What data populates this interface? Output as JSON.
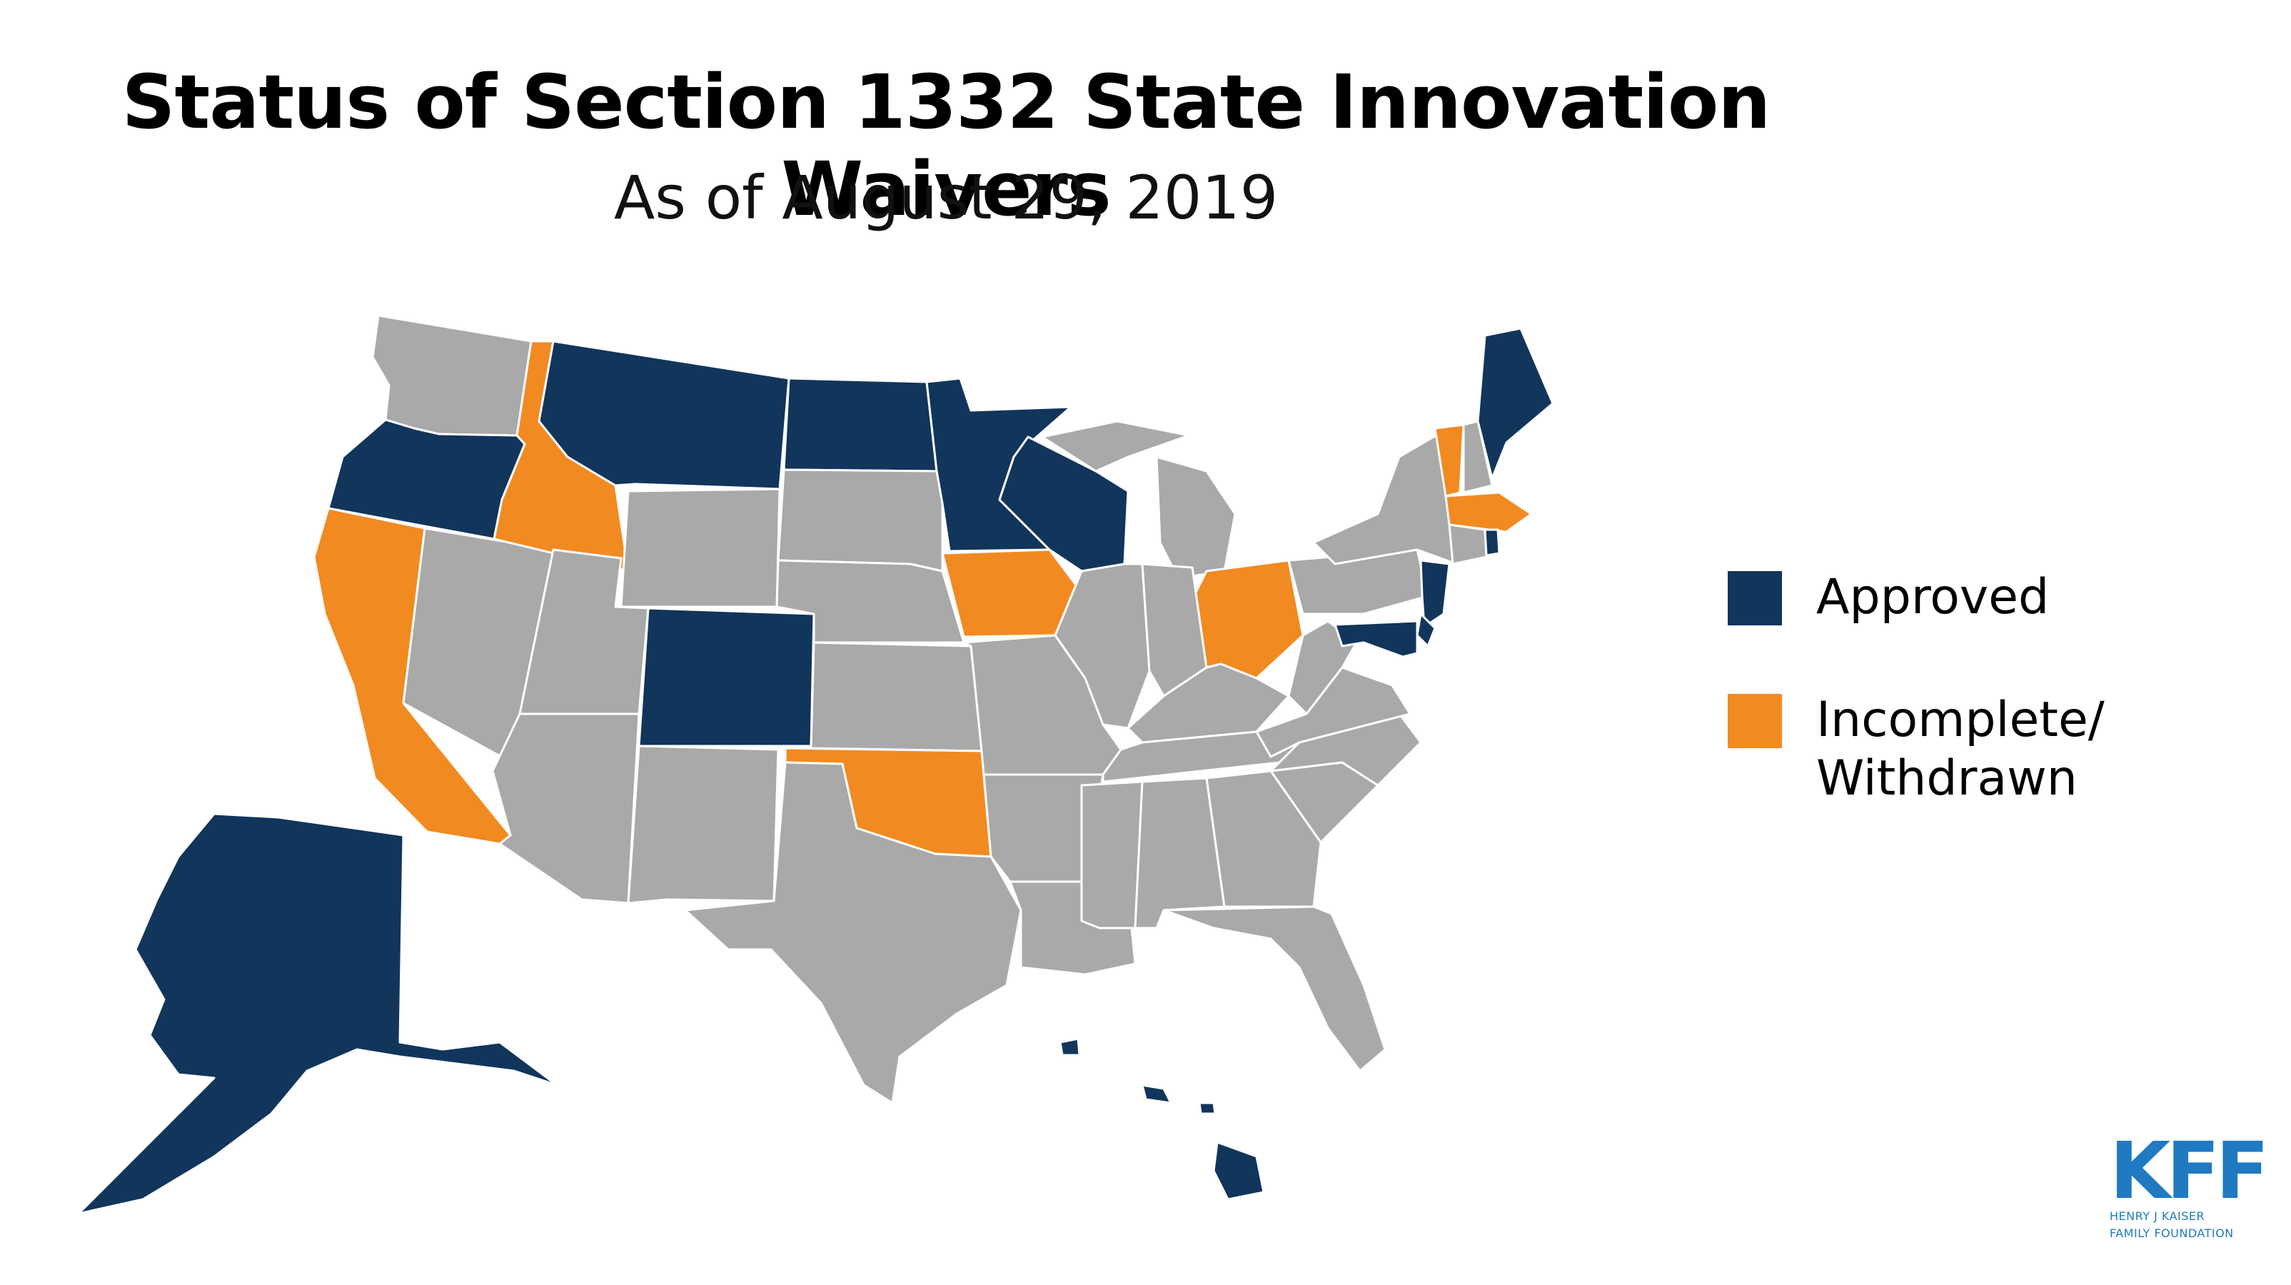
{
  "title": "Status of Section 1332 State Innovation Waivers",
  "subtitle": "As of August 29, 2019",
  "colors": {
    "approved": "#12355b",
    "incomplete": "#f28a22",
    "none": "#a9a9a9",
    "border": "#ffffff",
    "brand": "#1f7ac2"
  },
  "legend": [
    {
      "key": "approved",
      "label": "Approved"
    },
    {
      "key": "incomplete",
      "label": "Incomplete/\nWithdrawn"
    }
  ],
  "states": {
    "approved": [
      "AK",
      "OR",
      "MT",
      "ND",
      "MN",
      "WI",
      "CO",
      "ME",
      "NJ",
      "MD",
      "DE",
      "RI",
      "HI"
    ],
    "incomplete": [
      "CA",
      "ID",
      "IA",
      "OH",
      "OK",
      "VT",
      "MA"
    ]
  },
  "logo": {
    "mark": "KFF",
    "line1": "HENRY J KAISER",
    "line2": "FAMILY FOUNDATION"
  }
}
